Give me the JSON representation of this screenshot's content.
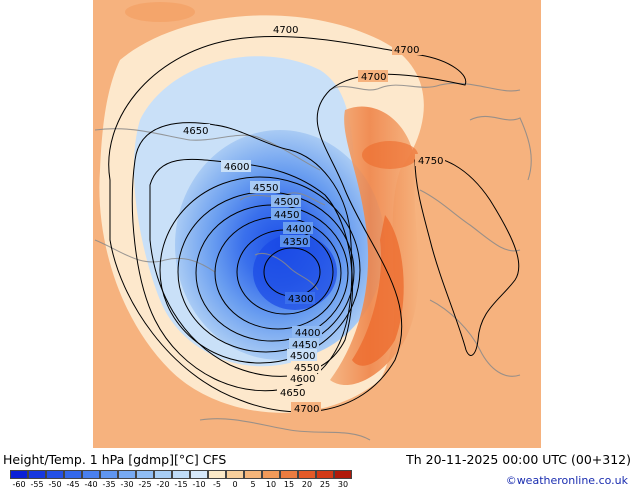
{
  "header": {
    "title": "Height/Temp. 1 hPa [gdmp][°C] CFS",
    "datetime": "Th 20-11-2025 00:00 UTC (00+312)",
    "credit": "©weatheronline.co.uk"
  },
  "contour_labels": {
    "c1": "4700",
    "c2": "4700",
    "c3": "4700",
    "c4": "4750",
    "c5": "4650",
    "c6": "4600",
    "c7": "4550",
    "c8": "4500",
    "c9": "4450",
    "c10": "4400",
    "c11": "4350",
    "c12": "4300",
    "c13": "4400",
    "c14": "4450",
    "c15": "4500",
    "c16": "4550",
    "c17": "4600",
    "c18": "4650",
    "c19": "4700"
  },
  "colorbar": {
    "ticks": [
      "-60",
      "-55",
      "-50",
      "-45",
      "-40",
      "-35",
      "-30",
      "-25",
      "-20",
      "-15",
      "-10",
      "-5",
      "0",
      "5",
      "10",
      "15",
      "20",
      "25",
      "30"
    ],
    "colors": [
      "#0a1fd6",
      "#1637e0",
      "#2450e6",
      "#3468ea",
      "#4a80ee",
      "#6096f0",
      "#78aaf2",
      "#90bdf4",
      "#a8cef6",
      "#c0dcf8",
      "#d6e8fa",
      "#fbe9c8",
      "#f8cf9c",
      "#f5b57a",
      "#f19a5a",
      "#ec7c40",
      "#e35a28",
      "#d33a16",
      "#b01a0a"
    ]
  },
  "colors": {
    "cold_core": "#2a5ff0",
    "warm_band": "#ee7c3c",
    "background": "#f7b07a"
  }
}
